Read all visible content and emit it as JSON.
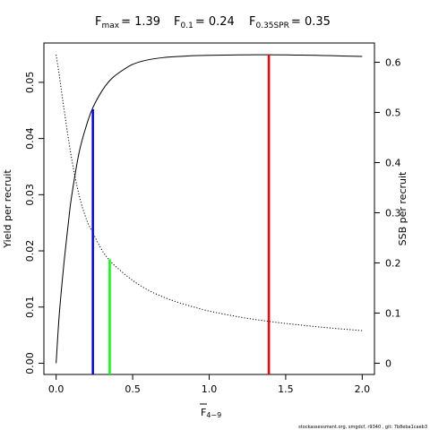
{
  "chart_data": {
    "type": "line",
    "title": {
      "fmax_sym": "F",
      "fmax_sub": "max",
      "fmax_val": "= 1.39",
      "f01_sym": "F",
      "f01_sub": "0.1",
      "f01_val": "= 0.24",
      "fspr_sym": "F",
      "fspr_sub": "0.35SPR",
      "fspr_val": "= 0.35"
    },
    "xlabel": {
      "sym": "F",
      "sub": "4−9"
    },
    "ylabel_left": "Yield per recruit",
    "ylabel_right": "SSB per recruit",
    "xlim": [
      -0.08,
      2.08
    ],
    "ylim_left": [
      -0.002,
      0.057
    ],
    "ylim_right": [
      -0.0224,
      0.6384
    ],
    "x_ticks": [
      {
        "value": 0.0,
        "label": "0.0"
      },
      {
        "value": 0.5,
        "label": "0.5"
      },
      {
        "value": 1.0,
        "label": "1.0"
      },
      {
        "value": 1.5,
        "label": "1.5"
      },
      {
        "value": 2.0,
        "label": "2.0"
      }
    ],
    "y_ticks_left": [
      {
        "value": 0.0,
        "label": "0.00"
      },
      {
        "value": 0.01,
        "label": "0.01"
      },
      {
        "value": 0.02,
        "label": "0.02"
      },
      {
        "value": 0.03,
        "label": "0.03"
      },
      {
        "value": 0.04,
        "label": "0.04"
      },
      {
        "value": 0.05,
        "label": "0.05"
      }
    ],
    "y_ticks_right": [
      {
        "value": 0.0,
        "label": "0"
      },
      {
        "value": 0.1,
        "label": "0.1"
      },
      {
        "value": 0.2,
        "label": "0.2"
      },
      {
        "value": 0.3,
        "label": "0.3"
      },
      {
        "value": 0.4,
        "label": "0.4"
      },
      {
        "value": 0.5,
        "label": "0.5"
      },
      {
        "value": 0.6,
        "label": "0.6"
      }
    ],
    "series": [
      {
        "axis": "left",
        "style": "solid",
        "color": "#000000",
        "x": [
          0,
          0.02,
          0.05,
          0.08,
          0.1,
          0.15,
          0.2,
          0.24,
          0.3,
          0.35,
          0.4,
          0.5,
          0.6,
          0.7,
          0.8,
          0.9,
          1.0,
          1.1,
          1.2,
          1.3,
          1.39,
          1.5,
          1.6,
          1.7,
          1.8,
          1.9,
          2.0
        ],
        "y": [
          0,
          0.0085,
          0.0175,
          0.025,
          0.0295,
          0.0375,
          0.0425,
          0.0455,
          0.0485,
          0.0503,
          0.0515,
          0.0532,
          0.054,
          0.0544,
          0.0546,
          0.05475,
          0.0548,
          0.05485,
          0.05488,
          0.0549,
          0.0549,
          0.05488,
          0.05484,
          0.0548,
          0.05474,
          0.05467,
          0.0546
        ]
      },
      {
        "axis": "right",
        "style": "dotted",
        "color": "#000000",
        "x": [
          0,
          0.02,
          0.05,
          0.1,
          0.15,
          0.2,
          0.24,
          0.3,
          0.35,
          0.4,
          0.5,
          0.6,
          0.7,
          0.8,
          0.9,
          1.0,
          1.2,
          1.4,
          1.6,
          1.8,
          2.0
        ],
        "y": [
          0.615,
          0.575,
          0.51,
          0.41,
          0.335,
          0.285,
          0.26,
          0.225,
          0.205,
          0.19,
          0.165,
          0.146,
          0.132,
          0.121,
          0.112,
          0.104,
          0.092,
          0.083,
          0.076,
          0.07,
          0.065
        ]
      }
    ],
    "reference_lines": [
      {
        "name": "F0.1",
        "x": 0.24,
        "y_left": 0.0452,
        "color": "#0000ff"
      },
      {
        "name": "F0.35SPR",
        "x": 0.35,
        "y_left": 0.0185,
        "color": "#00ff00"
      },
      {
        "name": "Fmax",
        "x": 1.39,
        "y_left": 0.0549,
        "color": "#ff0000"
      }
    ]
  },
  "footer": "stockassessment.org, smgdcf, r9340 , git: 7b8eba1caeb3"
}
